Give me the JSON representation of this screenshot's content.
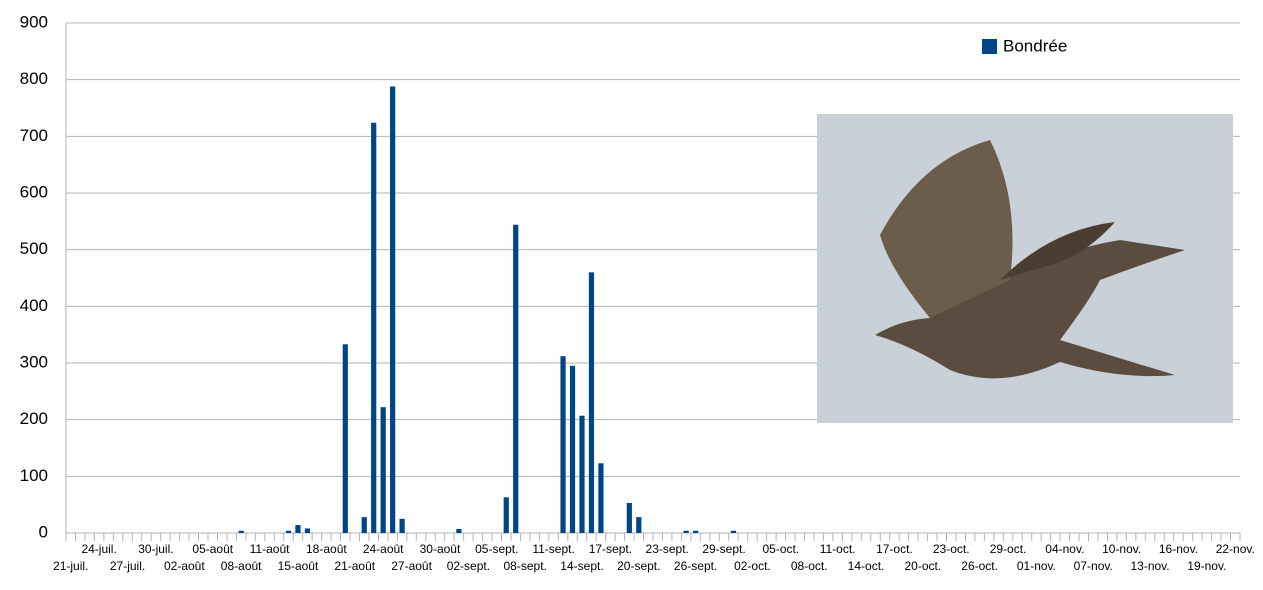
{
  "chart_data": {
    "type": "bar",
    "categories": [
      "21-juil.",
      null,
      null,
      "24-juil.",
      null,
      null,
      "27-juil.",
      null,
      null,
      "30-juil.",
      null,
      null,
      "02-août",
      null,
      null,
      "05-août",
      null,
      null,
      "08-août",
      null,
      null,
      "11-août",
      null,
      null,
      "15-août",
      null,
      null,
      "18-août",
      null,
      null,
      "21-août",
      null,
      null,
      "24-août",
      null,
      null,
      "27-août",
      null,
      null,
      "30-août",
      null,
      null,
      "02-sept.",
      null,
      null,
      "05-sept.",
      null,
      null,
      "08-sept.",
      null,
      null,
      "11-sept.",
      null,
      null,
      "14-sept.",
      null,
      null,
      "17-sept.",
      null,
      null,
      "20-sept.",
      null,
      null,
      "23-sept.",
      null,
      null,
      "26-sept.",
      null,
      null,
      "29-sept.",
      null,
      null,
      "02-oct.",
      null,
      null,
      "05-oct.",
      null,
      null,
      "08-oct.",
      null,
      null,
      "11-oct.",
      null,
      null,
      "14-oct.",
      null,
      null,
      "17-oct.",
      null,
      null,
      "20-oct.",
      null,
      null,
      "23-oct.",
      null,
      null,
      "26-oct.",
      null,
      null,
      "29-oct.",
      null,
      null,
      "01-nov.",
      null,
      null,
      "04-nov.",
      null,
      null,
      "07-nov.",
      null,
      null,
      "10-nov.",
      null,
      null,
      "13-nov.",
      null,
      null,
      "16-nov.",
      null,
      null,
      "19-nov.",
      null,
      null,
      "22-nov."
    ],
    "series": [
      {
        "name": "Bondrée",
        "color": "#004586",
        "values": [
          0,
          0,
          0,
          0,
          0,
          0,
          0,
          0,
          0,
          0,
          0,
          0,
          0,
          0,
          0,
          0,
          0,
          0,
          4,
          0,
          0,
          0,
          0,
          4,
          14,
          8,
          0,
          0,
          0,
          333,
          0,
          28,
          724,
          222,
          788,
          25,
          0,
          0,
          0,
          0,
          0,
          7,
          0,
          0,
          0,
          0,
          63,
          544,
          0,
          0,
          0,
          0,
          312,
          295,
          207,
          460,
          123,
          0,
          0,
          53,
          28,
          0,
          0,
          0,
          0,
          4,
          4,
          0,
          0,
          0,
          4,
          0,
          0,
          0,
          0,
          0,
          0,
          0,
          0,
          0,
          0,
          0,
          0,
          0,
          0,
          0,
          0,
          0,
          0,
          0,
          0,
          0,
          0,
          0,
          0,
          0,
          0,
          0,
          0,
          0,
          0,
          0,
          0,
          0,
          0,
          0,
          0,
          0,
          0,
          0,
          0,
          0,
          0,
          0,
          0,
          0,
          0,
          0,
          0,
          0,
          0,
          0,
          0,
          0
        ]
      }
    ],
    "ylim": [
      0,
      900
    ],
    "yticks": [
      0,
      100,
      200,
      300,
      400,
      500,
      600,
      700,
      800,
      900
    ],
    "grid": true,
    "legend": "top-right"
  }
}
